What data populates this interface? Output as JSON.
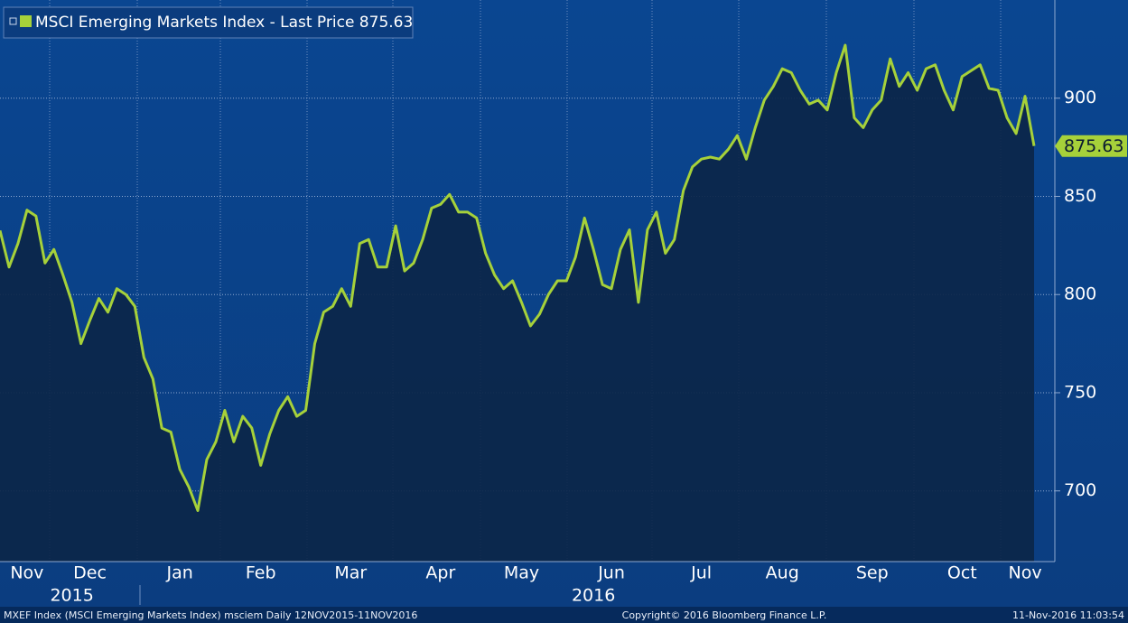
{
  "chart_data": {
    "type": "line",
    "title": "MSCI Emerging Markets Index - Last Price 875.63",
    "footer_left": "MXEF Index (MSCI Emerging Markets Index) msciem  Daily 12NOV2015-11NOV2016",
    "footer_center": "Copyright© 2016 Bloomberg Finance L.P.",
    "footer_right": "11-Nov-2016 11:03:54",
    "categories": [
      null,
      null,
      null,
      "Nov",
      null,
      null,
      null,
      null,
      null,
      null,
      "Dec",
      null,
      null,
      null,
      null,
      null,
      null,
      null,
      null,
      null,
      "Jan",
      null,
      null,
      null,
      null,
      null,
      null,
      null,
      null,
      "Feb",
      null,
      null,
      null,
      null,
      null,
      null,
      null,
      null,
      null,
      "Mar",
      null,
      null,
      null,
      null,
      null,
      null,
      null,
      null,
      null,
      "Apr",
      null,
      null,
      null,
      null,
      null,
      null,
      null,
      null,
      "May",
      null,
      null,
      null,
      null,
      null,
      null,
      null,
      null,
      null,
      "Jun",
      null,
      null,
      null,
      null,
      null,
      null,
      null,
      null,
      null,
      "Jul",
      null,
      null,
      null,
      null,
      null,
      null,
      null,
      null,
      "Aug",
      null,
      null,
      null,
      null,
      null,
      null,
      null,
      null,
      null,
      "Sep",
      null,
      null,
      null,
      null,
      null,
      null,
      null,
      null,
      null,
      "Oct",
      null,
      null,
      null,
      null,
      null,
      null,
      "Nov",
      null
    ],
    "category_groups": [
      null,
      null,
      null,
      null,
      null,
      null,
      null,
      null,
      "2015",
      null,
      null,
      null,
      null,
      null,
      null,
      null,
      null,
      null,
      null,
      null,
      null,
      null,
      null,
      null,
      null,
      null,
      null,
      null,
      null,
      null,
      null,
      null,
      null,
      null,
      null,
      null,
      null,
      null,
      null,
      null,
      null,
      null,
      null,
      null,
      null,
      null,
      null,
      null,
      null,
      null,
      null,
      null,
      null,
      null,
      null,
      null,
      null,
      null,
      null,
      null,
      null,
      null,
      null,
      null,
      null,
      null,
      "2016",
      null,
      null,
      null,
      null,
      null,
      null,
      null,
      null,
      null,
      null,
      null,
      null,
      null,
      null,
      null,
      null,
      null,
      null,
      null,
      null,
      null,
      null,
      null,
      null,
      null,
      null,
      null,
      null,
      null,
      null,
      null,
      null,
      null,
      null,
      null,
      null,
      null,
      null,
      null,
      null,
      null,
      null,
      null,
      null,
      null,
      null,
      null,
      null,
      null
    ],
    "series": [
      {
        "name": "MSCI Emerging Markets Index",
        "color": "#a6d13a",
        "values": [
          832.6,
          814,
          826,
          843,
          840,
          816,
          823,
          810,
          796,
          775,
          787,
          798,
          791,
          803,
          800,
          794,
          768,
          757,
          732,
          730,
          711,
          702,
          690,
          716,
          725,
          741,
          725,
          738,
          732,
          713,
          729,
          741,
          748,
          738,
          741,
          775,
          791,
          794,
          803,
          794,
          826,
          828,
          814,
          814,
          835,
          812,
          816,
          828,
          844,
          846,
          851,
          842,
          842,
          839,
          821,
          810,
          803,
          807,
          796,
          784,
          790,
          800,
          807,
          807,
          819,
          839,
          823,
          805,
          803,
          823,
          833,
          796,
          833,
          842,
          821,
          828,
          853,
          865,
          869,
          870,
          869,
          874,
          881,
          869,
          885,
          899,
          906,
          915,
          913,
          904,
          897,
          899,
          894,
          913,
          927,
          890,
          885,
          894,
          899,
          920,
          906,
          913,
          904,
          915,
          917,
          904,
          894,
          911,
          914,
          917,
          905,
          904,
          890,
          882,
          901,
          875.63
        ]
      }
    ],
    "ylim": [
      664,
      950
    ],
    "yticks": [
      700,
      750,
      800,
      850,
      900
    ],
    "grid": true,
    "area_fill": true
  }
}
